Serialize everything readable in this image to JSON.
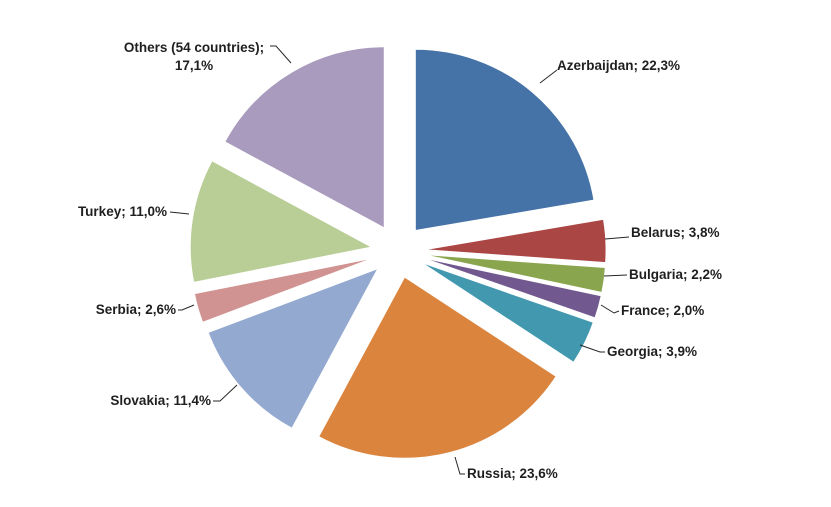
{
  "chart_data": {
    "type": "pie",
    "exploded": true,
    "title": "",
    "legend": "none",
    "slices": [
      {
        "name": "Azerbaijdan",
        "value": 22.3,
        "label": "Azerbaijdan; 22,3%",
        "color": "#4572A7"
      },
      {
        "name": "Belarus",
        "value": 3.8,
        "label": "Belarus; 3,8%",
        "color": "#AA4643"
      },
      {
        "name": "Bulgaria",
        "value": 2.2,
        "label": "Bulgaria; 2,2%",
        "color": "#89A54E"
      },
      {
        "name": "France",
        "value": 2.0,
        "label": "France; 2,0%",
        "color": "#71588F"
      },
      {
        "name": "Georgia",
        "value": 3.9,
        "label": "Georgia; 3,9%",
        "color": "#4198AF"
      },
      {
        "name": "Russia",
        "value": 23.6,
        "label": "Russia; 23,6%",
        "color": "#DB843D"
      },
      {
        "name": "Slovakia",
        "value": 11.4,
        "label": "Slovakia; 11,4%",
        "color": "#93A9CF"
      },
      {
        "name": "Serbia",
        "value": 2.6,
        "label": "Serbia; 2,6%",
        "color": "#D19392"
      },
      {
        "name": "Turkey",
        "value": 11.0,
        "label": "Turkey; 11,0%",
        "color": "#B9CD96"
      },
      {
        "name": "Others (54 countries)",
        "value": 17.1,
        "label_lines": [
          "Others (54 countries);",
          "17,1%"
        ],
        "color": "#A99BBD"
      }
    ]
  }
}
